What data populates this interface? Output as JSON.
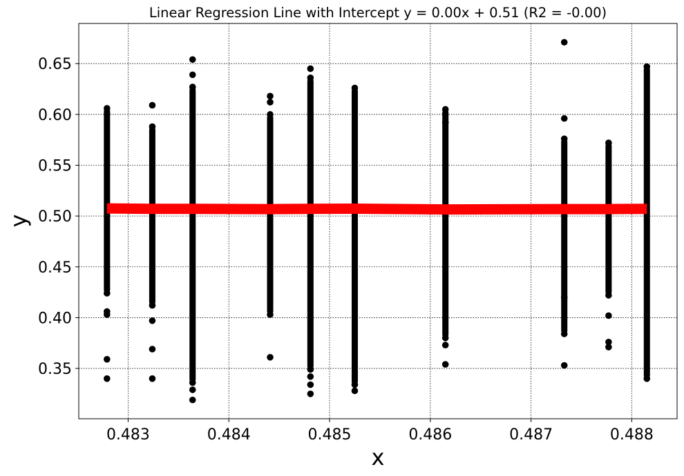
{
  "chart_data": {
    "type": "scatter",
    "title": "Linear Regression Line with Intercept y = 0.00x + 0.51 (R2 = -0.00)",
    "xlabel": "x",
    "ylabel": "y",
    "xlim": [
      0.48251,
      0.48845
    ],
    "ylim": [
      0.3005,
      0.6895
    ],
    "xticks": [
      0.483,
      0.484,
      0.485,
      0.486,
      0.487,
      0.488
    ],
    "xtick_labels": [
      "0.483",
      "0.484",
      "0.485",
      "0.486",
      "0.487",
      "0.488"
    ],
    "yticks": [
      0.35,
      0.4,
      0.45,
      0.5,
      0.55,
      0.6,
      0.65
    ],
    "ytick_labels": [
      "0.35",
      "0.40",
      "0.45",
      "0.50",
      "0.55",
      "0.60",
      "0.65"
    ],
    "grid": true,
    "point_color": "#000000",
    "line_color": "#ff0000",
    "series": [
      {
        "type": "scatter",
        "points": [
          {
            "x": 0.48279,
            "ymin": 0.424,
            "ymax": 0.606,
            "outliers": [
              0.34,
              0.359,
              0.403,
              0.406
            ]
          },
          {
            "x": 0.48324,
            "ymin": 0.412,
            "ymax": 0.588,
            "outliers": [
              0.34,
              0.369,
              0.397,
              0.609
            ]
          },
          {
            "x": 0.48364,
            "ymin": 0.336,
            "ymax": 0.627,
            "outliers": [
              0.319,
              0.329,
              0.639,
              0.654
            ]
          },
          {
            "x": 0.48441,
            "ymin": 0.403,
            "ymax": 0.6,
            "outliers": [
              0.361,
              0.612,
              0.618
            ]
          },
          {
            "x": 0.48481,
            "ymin": 0.349,
            "ymax": 0.636,
            "outliers": [
              0.325,
              0.334,
              0.342,
              0.645
            ]
          },
          {
            "x": 0.48525,
            "ymin": 0.334,
            "ymax": 0.626,
            "outliers": [
              0.328
            ]
          },
          {
            "x": 0.48615,
            "ymin": 0.38,
            "ymax": 0.605,
            "outliers": [
              0.354,
              0.373,
              0.592
            ]
          },
          {
            "x": 0.48733,
            "ymin": 0.384,
            "ymax": 0.576,
            "outliers": [
              0.353,
              0.42,
              0.596,
              0.671
            ]
          },
          {
            "x": 0.48777,
            "ymin": 0.422,
            "ymax": 0.572,
            "outliers": [
              0.371,
              0.376,
              0.402
            ]
          },
          {
            "x": 0.48815,
            "ymin": 0.34,
            "ymax": 0.647,
            "outliers": []
          }
        ]
      },
      {
        "type": "line",
        "x": [
          0.48279,
          0.48324,
          0.48364,
          0.48441,
          0.48481,
          0.48525,
          0.48615,
          0.48733,
          0.48777,
          0.48815
        ],
        "y": [
          0.5075,
          0.507,
          0.507,
          0.5068,
          0.507,
          0.5072,
          0.5065,
          0.5068,
          0.5068,
          0.507
        ]
      }
    ]
  }
}
